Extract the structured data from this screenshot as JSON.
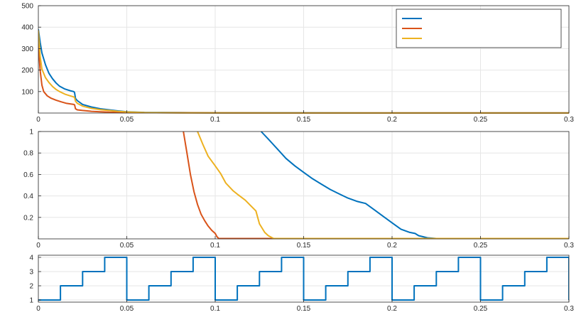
{
  "colors": {
    "series1": "#0072BD",
    "series2": "#D95319",
    "series3": "#EDB120",
    "axis": "#262626",
    "grid": "#e6e6e6",
    "background": "#ffffff"
  },
  "chart_data": [
    {
      "type": "line",
      "grid": true,
      "xlim": [
        0,
        0.3
      ],
      "ylim": [
        0,
        500
      ],
      "xticks": [
        0,
        0.05,
        0.1,
        0.15,
        0.2,
        0.25,
        0.3
      ],
      "xtick_labels": [
        "0",
        "0.05",
        "0.1",
        "0.15",
        "0.2",
        "0.25",
        "0.3"
      ],
      "yticks": [
        100,
        200,
        300,
        400,
        500
      ],
      "ytick_labels": [
        "100",
        "200",
        "300",
        "400",
        "500"
      ],
      "legend": {
        "placement": "top-right",
        "entries": 3
      },
      "series": [
        {
          "color": "series1",
          "x": [
            0,
            0.001,
            0.002,
            0.004,
            0.006,
            0.008,
            0.01,
            0.012,
            0.015,
            0.018,
            0.02,
            0.0205,
            0.021,
            0.022,
            0.025,
            0.03,
            0.035,
            0.04,
            0.045,
            0.05,
            0.06,
            0.08,
            0.1,
            0.15,
            0.2,
            0.3
          ],
          "y": [
            390,
            330,
            280,
            225,
            185,
            160,
            140,
            125,
            112,
            104,
            100,
            95,
            68,
            58,
            40,
            28,
            20,
            15,
            10,
            6,
            3,
            2,
            1,
            0.5,
            0.3,
            0.3
          ]
        },
        {
          "color": "series2",
          "x": [
            0,
            0.001,
            0.002,
            0.003,
            0.005,
            0.007,
            0.01,
            0.013,
            0.016,
            0.02,
            0.0205,
            0.021,
            0.022,
            0.025,
            0.03,
            0.035,
            0.04,
            0.05,
            0.1,
            0.2,
            0.3
          ],
          "y": [
            320,
            200,
            130,
            100,
            80,
            70,
            60,
            52,
            45,
            40,
            38,
            20,
            15,
            12,
            8,
            6,
            4,
            2,
            0.5,
            0.2,
            0.2
          ]
        },
        {
          "color": "series3",
          "x": [
            0,
            0.001,
            0.002,
            0.004,
            0.006,
            0.008,
            0.01,
            0.012,
            0.015,
            0.018,
            0.02,
            0.0205,
            0.021,
            0.022,
            0.025,
            0.03,
            0.035,
            0.04,
            0.045,
            0.05,
            0.06,
            0.08,
            0.1,
            0.15,
            0.2,
            0.3
          ],
          "y": [
            385,
            265,
            205,
            165,
            142,
            124,
            110,
            100,
            88,
            80,
            75,
            72,
            55,
            45,
            32,
            22,
            16,
            12,
            8,
            5,
            2,
            1,
            0.5,
            0.3,
            0.2,
            0.2
          ]
        }
      ]
    },
    {
      "type": "line",
      "grid": true,
      "xlim": [
        0,
        0.3
      ],
      "ylim": [
        0,
        1
      ],
      "xticks": [
        0,
        0.05,
        0.1,
        0.15,
        0.2,
        0.25,
        0.3
      ],
      "xtick_labels": [
        "0",
        "0.05",
        "0.1",
        "0.15",
        "0.2",
        "0.25",
        "0.3"
      ],
      "yticks": [
        0.2,
        0.4,
        0.6,
        0.8,
        1
      ],
      "ytick_labels": [
        "0.2",
        "0.4",
        "0.6",
        "0.8",
        "1"
      ],
      "series": [
        {
          "color": "series1",
          "x": [
            0.126,
            0.13,
            0.135,
            0.14,
            0.145,
            0.15,
            0.155,
            0.16,
            0.165,
            0.17,
            0.175,
            0.18,
            0.185,
            0.19,
            0.195,
            0.2,
            0.205,
            0.21,
            0.213,
            0.215,
            0.22,
            0.225,
            0.3
          ],
          "y": [
            1.0,
            0.93,
            0.84,
            0.75,
            0.68,
            0.62,
            0.56,
            0.51,
            0.46,
            0.42,
            0.38,
            0.35,
            0.33,
            0.27,
            0.21,
            0.15,
            0.09,
            0.06,
            0.05,
            0.03,
            0.01,
            0.003,
            0.003
          ]
        },
        {
          "color": "series2",
          "x": [
            0.082,
            0.084,
            0.086,
            0.088,
            0.09,
            0.092,
            0.094,
            0.096,
            0.098,
            0.1,
            0.101,
            0.102,
            0.11,
            0.13,
            0.3
          ],
          "y": [
            1.0,
            0.8,
            0.6,
            0.44,
            0.32,
            0.23,
            0.17,
            0.12,
            0.08,
            0.05,
            0.02,
            0.003,
            0.003,
            0.003,
            0.003
          ]
        },
        {
          "color": "series3",
          "x": [
            0.09,
            0.093,
            0.096,
            0.1,
            0.103,
            0.106,
            0.11,
            0.113,
            0.117,
            0.12,
            0.123,
            0.125,
            0.128,
            0.13,
            0.133,
            0.3
          ],
          "y": [
            1.0,
            0.88,
            0.77,
            0.68,
            0.61,
            0.52,
            0.45,
            0.41,
            0.36,
            0.31,
            0.26,
            0.14,
            0.06,
            0.03,
            0.003,
            0.003
          ]
        }
      ]
    },
    {
      "type": "line",
      "grid": true,
      "xlim": [
        0,
        0.3
      ],
      "ylim": [
        0.85,
        4.15
      ],
      "xticks": [
        0,
        0.05,
        0.1,
        0.15,
        0.2,
        0.25,
        0.3
      ],
      "xtick_labels": [
        "0",
        "0.05",
        "0.1",
        "0.15",
        "0.2",
        "0.25",
        "0.3"
      ],
      "yticks": [
        1,
        2,
        3,
        4
      ],
      "ytick_labels": [
        "1",
        "2",
        "3",
        "4"
      ],
      "series": [
        {
          "color": "series1",
          "step": true,
          "period": 0.05,
          "levels": [
            1,
            2,
            3,
            4
          ],
          "x_range": [
            0,
            0.3
          ]
        }
      ]
    }
  ]
}
